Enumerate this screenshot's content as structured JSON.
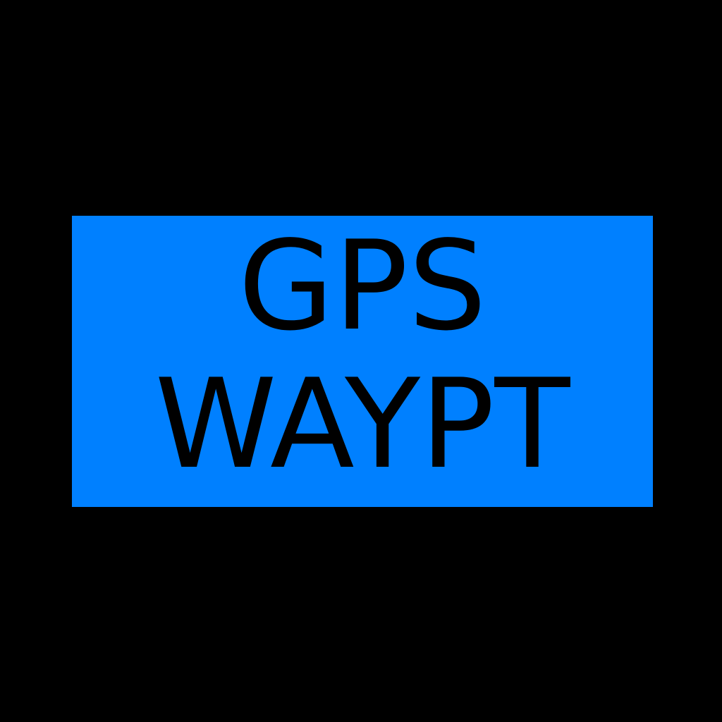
{
  "button": {
    "line1": "GPS",
    "line2": "WAYPT"
  },
  "colors": {
    "background": "#000000",
    "button_fill": "#0080ff",
    "text": "#000000"
  }
}
